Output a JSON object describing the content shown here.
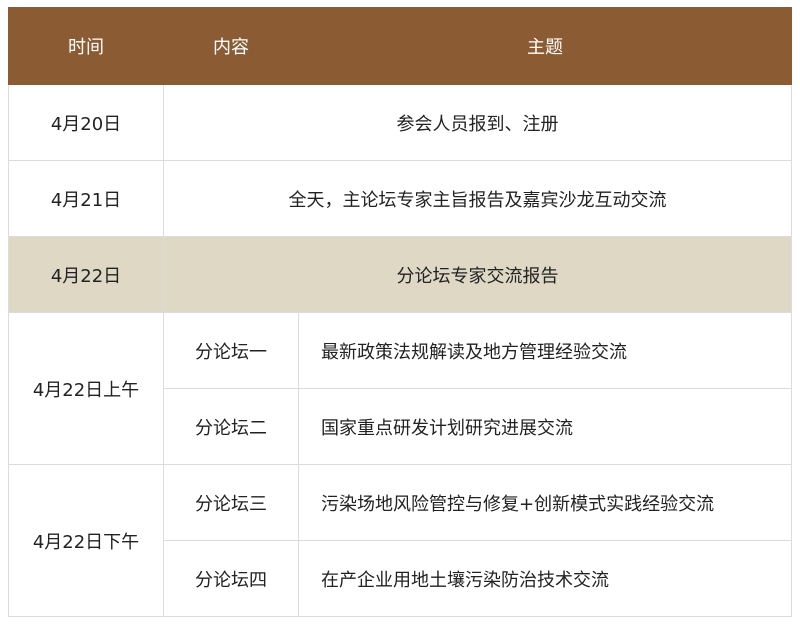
{
  "header": {
    "time": "时间",
    "content": "内容",
    "theme": "主题"
  },
  "colors": {
    "header_bg": "#8B5C33",
    "highlight_bg": "#DED8C5"
  },
  "rows": [
    {
      "date": "4月20日",
      "theme": "参会人员报到、注册"
    },
    {
      "date": "4月21日",
      "theme": "全天，主论坛专家主旨报告及嘉宾沙龙互动交流"
    },
    {
      "date": "4月22日",
      "theme": "分论坛专家交流报告"
    }
  ],
  "sessions": [
    {
      "date": "4月22日上午",
      "forums": [
        {
          "name": "分论坛一",
          "theme": "最新政策法规解读及地方管理经验交流"
        },
        {
          "name": "分论坛二",
          "theme": "国家重点研发计划研究进展交流"
        }
      ]
    },
    {
      "date": "4月22日下午",
      "forums": [
        {
          "name": "分论坛三",
          "theme": "污染场地风险管控与修复+创新模式实践经验交流"
        },
        {
          "name": "分论坛四",
          "theme": "在产企业用地土壤污染防治技术交流"
        }
      ]
    }
  ]
}
